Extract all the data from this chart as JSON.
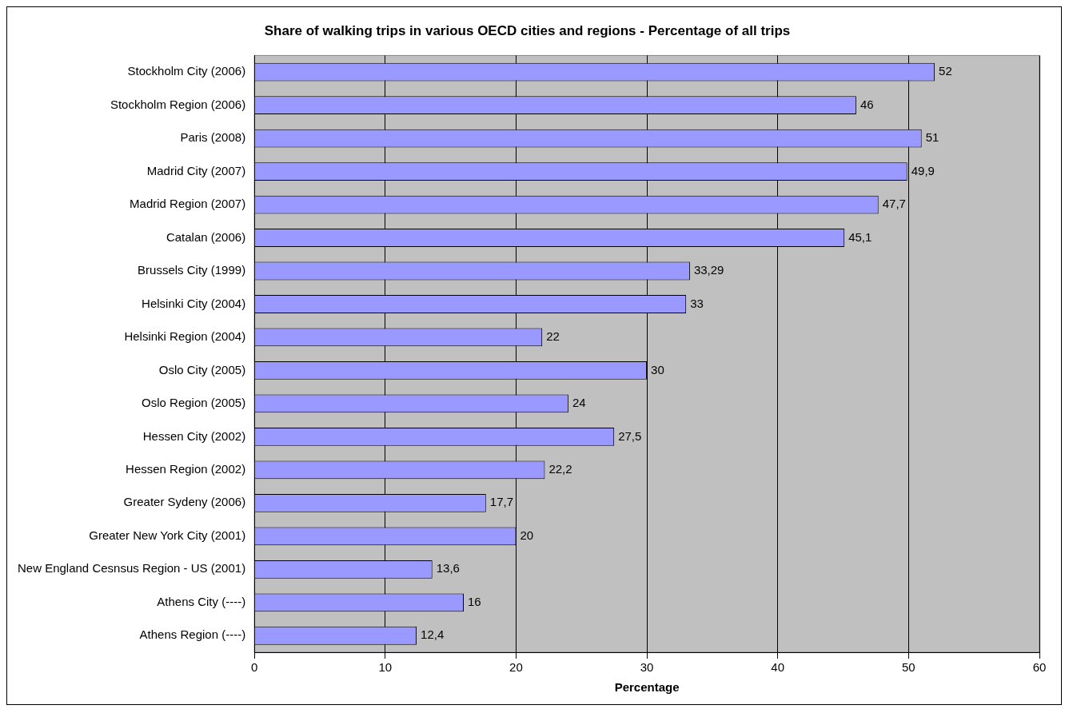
{
  "chart_data": {
    "type": "bar",
    "orientation": "horizontal",
    "title": "Share of walking trips in various OECD cities and regions - Percentage of all trips",
    "xlabel": "Percentage",
    "categories": [
      "Stockholm City (2006)",
      "Stockholm Region (2006)",
      "Paris (2008)",
      "Madrid City (2007)",
      "Madrid Region (2007)",
      "Catalan (2006)",
      "Brussels City (1999)",
      "Helsinki City (2004)",
      "Helsinki Region (2004)",
      "Oslo City (2005)",
      "Oslo Region (2005)",
      "Hessen City (2002)",
      "Hessen Region (2002)",
      "Greater Sydeny (2006)",
      "Greater New York City (2001)",
      "New England Cesnsus Region - US (2001)",
      "Athens City (----)",
      "Athens Region (----)"
    ],
    "values": [
      52,
      46,
      51,
      49.9,
      47.7,
      45.1,
      33.29,
      33,
      22,
      30,
      24,
      27.5,
      22.2,
      17.7,
      20,
      13.6,
      16,
      12.4
    ],
    "value_labels": [
      "52",
      "46",
      "51",
      "49,9",
      "47,7",
      "45,1",
      "33,29",
      "33",
      "22",
      "30",
      "24",
      "27,5",
      "22,2",
      "17,7",
      "20",
      "13,6",
      "16",
      "12,4"
    ],
    "color": "#9999ff",
    "xlim": [
      0,
      60
    ],
    "xticks": [
      0,
      10,
      20,
      30,
      40,
      50,
      60
    ],
    "grid": "x",
    "legend": false
  }
}
